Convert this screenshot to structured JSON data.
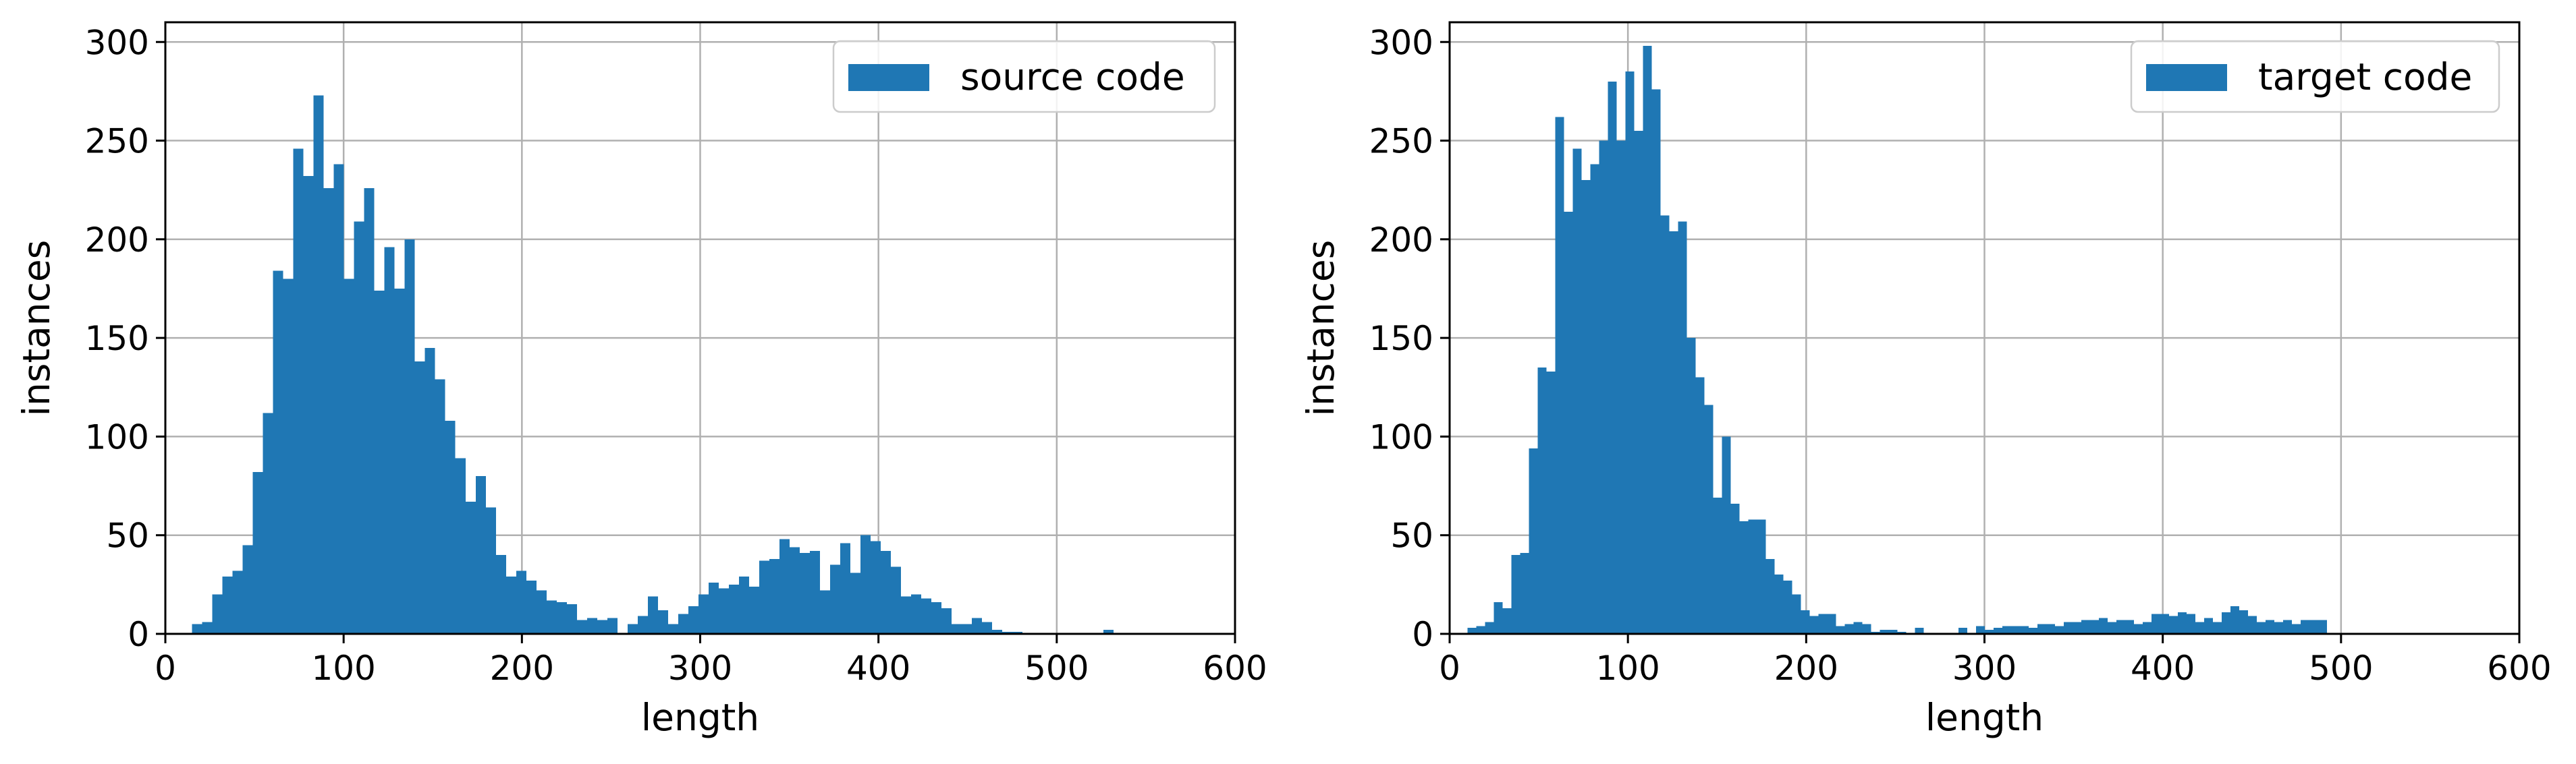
{
  "chart_data": [
    {
      "type": "bar",
      "legend_label": "source code",
      "legend_position": "top-right",
      "xlabel": "length",
      "ylabel": "instances",
      "xlim": [
        0,
        600
      ],
      "ylim": [
        0,
        310
      ],
      "xticks": [
        "0",
        "100",
        "200",
        "300",
        "400",
        "500",
        "600"
      ],
      "yticks": [
        "0",
        "50",
        "100",
        "150",
        "200",
        "250",
        "300"
      ],
      "grid": true,
      "color": "#1f77b4",
      "bin_start": 15,
      "bin_width": 5.68,
      "values": [
        5,
        6,
        20,
        29,
        32,
        45,
        82,
        112,
        184,
        180,
        246,
        232,
        273,
        226,
        238,
        180,
        209,
        226,
        174,
        196,
        175,
        200,
        138,
        145,
        129,
        108,
        89,
        67,
        80,
        64,
        40,
        29,
        32,
        27,
        22,
        17,
        16,
        15,
        7,
        8,
        7,
        8,
        0,
        5,
        9,
        19,
        12,
        5,
        10,
        14,
        20,
        26,
        23,
        25,
        29,
        24,
        37,
        38,
        48,
        44,
        41,
        42,
        22,
        35,
        46,
        31,
        50,
        47,
        42,
        34,
        19,
        20,
        18,
        16,
        13,
        5,
        5,
        8,
        6,
        2,
        1,
        1,
        0,
        0,
        0,
        0,
        0,
        0,
        0,
        0,
        2
      ]
    },
    {
      "type": "bar",
      "legend_label": "target code",
      "legend_position": "top-right",
      "xlabel": "length",
      "ylabel": "instances",
      "xlim": [
        0,
        600
      ],
      "ylim": [
        0,
        310
      ],
      "xticks": [
        "0",
        "100",
        "200",
        "300",
        "400",
        "500",
        "600"
      ],
      "yticks": [
        "0",
        "50",
        "100",
        "150",
        "200",
        "250",
        "300"
      ],
      "grid": true,
      "color": "#1f77b4",
      "bin_start": 10,
      "bin_width": 4.92,
      "values": [
        3,
        4,
        6,
        16,
        13,
        40,
        41,
        94,
        135,
        133,
        262,
        214,
        246,
        230,
        238,
        250,
        280,
        250,
        285,
        255,
        298,
        276,
        212,
        204,
        209,
        150,
        130,
        116,
        69,
        100,
        66,
        57,
        58,
        58,
        38,
        30,
        27,
        20,
        12,
        9,
        10,
        10,
        4,
        5,
        6,
        5,
        1,
        2,
        2,
        1,
        0,
        3,
        0,
        0,
        0,
        0,
        3,
        0,
        4,
        2,
        3,
        4,
        4,
        4,
        3,
        5,
        5,
        4,
        6,
        6,
        7,
        7,
        8,
        6,
        7,
        7,
        5,
        6,
        10,
        10,
        9,
        11,
        10,
        6,
        8,
        6,
        11,
        14,
        12,
        9,
        6,
        7,
        6,
        7,
        5,
        7,
        7,
        7
      ]
    }
  ]
}
